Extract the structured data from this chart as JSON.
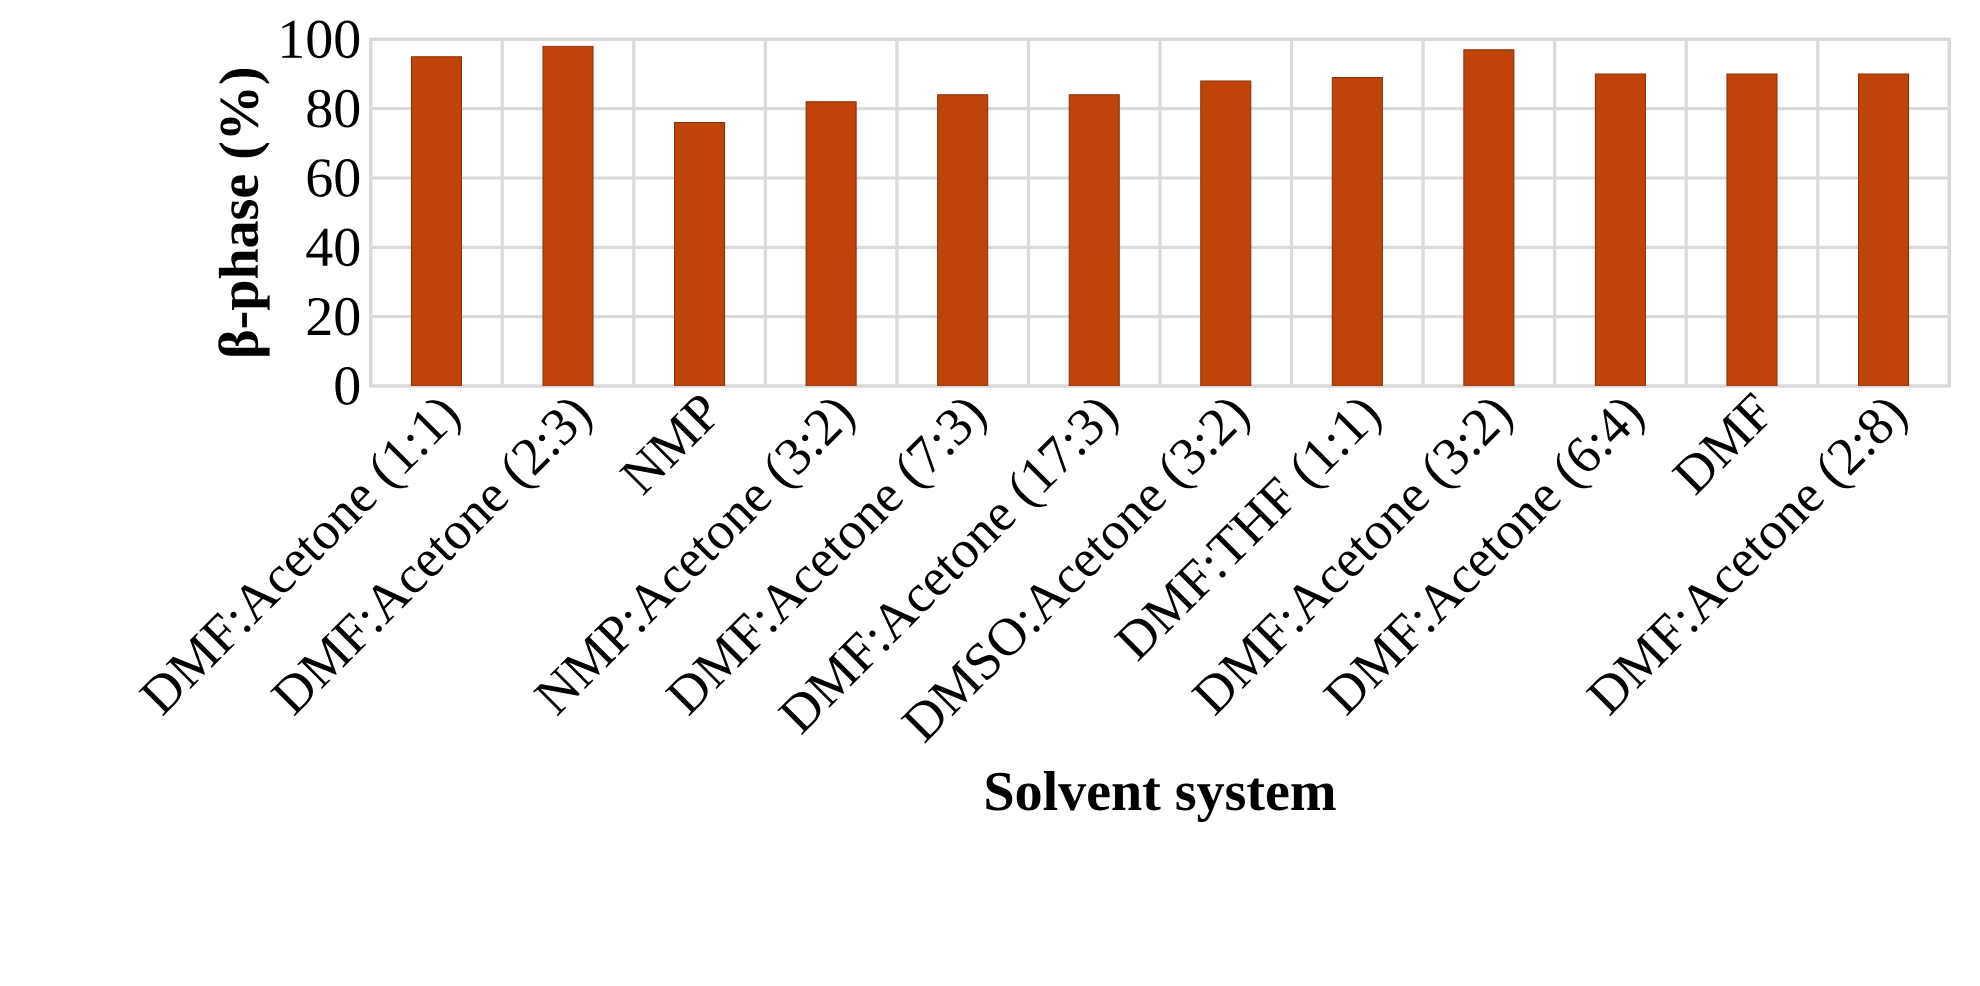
{
  "chart_data": {
    "type": "bar",
    "xlabel": "Solvent system",
    "ylabel": "β-phase (%)",
    "categories": [
      "DMF:Acetone (1:1)",
      "DMF:Acetone (2:3)",
      "NMP",
      "NMP:Acetone (3:2)",
      "DMF:Acetone (7:3)",
      "DMF:Acetone (17:3)",
      "DMSO:Acetone (3:2)",
      "DMF:THF (1:1)",
      "DMF:Acetone (3:2)",
      "DMF:Acetone (6:4)",
      "DMF",
      "DMF:Acetone (2:8)"
    ],
    "values": [
      95,
      98,
      76,
      82,
      84,
      84,
      88,
      89,
      97,
      90,
      90,
      90
    ],
    "color": "#c0440a",
    "ylim": [
      0,
      100
    ],
    "yticks": [
      0,
      20,
      40,
      60,
      80,
      100
    ],
    "grid": true
  }
}
